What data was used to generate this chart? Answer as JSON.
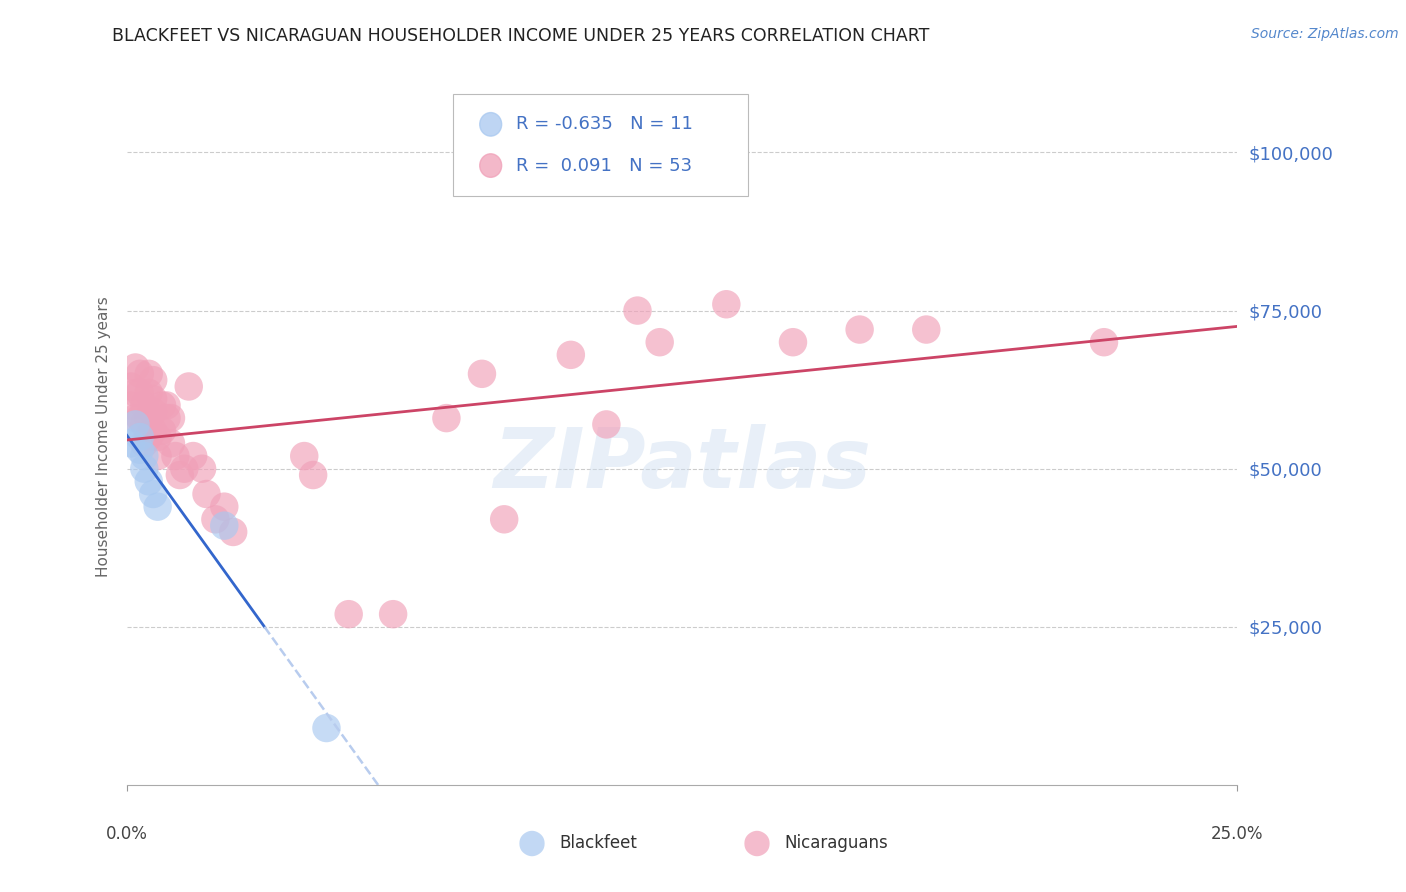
{
  "title": "BLACKFEET VS NICARAGUAN HOUSEHOLDER INCOME UNDER 25 YEARS CORRELATION CHART",
  "source": "Source: ZipAtlas.com",
  "ylabel": "Householder Income Under 25 years",
  "ytick_labels": [
    "$25,000",
    "$50,000",
    "$75,000",
    "$100,000"
  ],
  "ytick_values": [
    25000,
    50000,
    75000,
    100000
  ],
  "xmin": 0.0,
  "xmax": 0.25,
  "ymin": 0,
  "ymax": 110000,
  "legend_blue_r": "-0.635",
  "legend_blue_n": "11",
  "legend_pink_r": "0.091",
  "legend_pink_n": "53",
  "watermark_text": "ZIPatlas",
  "blue_color": "#a8c8f0",
  "pink_color": "#f0a0b8",
  "blue_line_color": "#3366cc",
  "pink_line_color": "#cc4466",
  "dashed_line_color": "#b8ccee",
  "blackfeet_x": [
    0.001,
    0.002,
    0.003,
    0.003,
    0.004,
    0.004,
    0.005,
    0.006,
    0.007,
    0.022,
    0.045
  ],
  "blackfeet_y": [
    54000,
    57000,
    55000,
    53000,
    52000,
    50000,
    48000,
    46000,
    44000,
    41000,
    9000
  ],
  "nicaraguan_x": [
    0.001,
    0.001,
    0.002,
    0.002,
    0.002,
    0.003,
    0.003,
    0.003,
    0.004,
    0.004,
    0.004,
    0.005,
    0.005,
    0.005,
    0.005,
    0.006,
    0.006,
    0.006,
    0.006,
    0.007,
    0.007,
    0.008,
    0.008,
    0.009,
    0.009,
    0.01,
    0.01,
    0.011,
    0.012,
    0.013,
    0.014,
    0.015,
    0.017,
    0.018,
    0.02,
    0.022,
    0.024,
    0.04,
    0.042,
    0.05,
    0.06,
    0.072,
    0.08,
    0.085,
    0.1,
    0.108,
    0.115,
    0.12,
    0.135,
    0.15,
    0.165,
    0.18,
    0.22
  ],
  "nicaraguan_y": [
    63000,
    60000,
    66000,
    62000,
    58000,
    65000,
    62000,
    58000,
    60000,
    57000,
    54000,
    65000,
    62000,
    58000,
    55000,
    64000,
    61000,
    59000,
    56000,
    55000,
    52000,
    60000,
    56000,
    60000,
    58000,
    58000,
    54000,
    52000,
    49000,
    50000,
    63000,
    52000,
    50000,
    46000,
    42000,
    44000,
    40000,
    52000,
    49000,
    27000,
    27000,
    58000,
    65000,
    42000,
    68000,
    57000,
    75000,
    70000,
    76000,
    70000,
    72000,
    72000,
    70000
  ]
}
